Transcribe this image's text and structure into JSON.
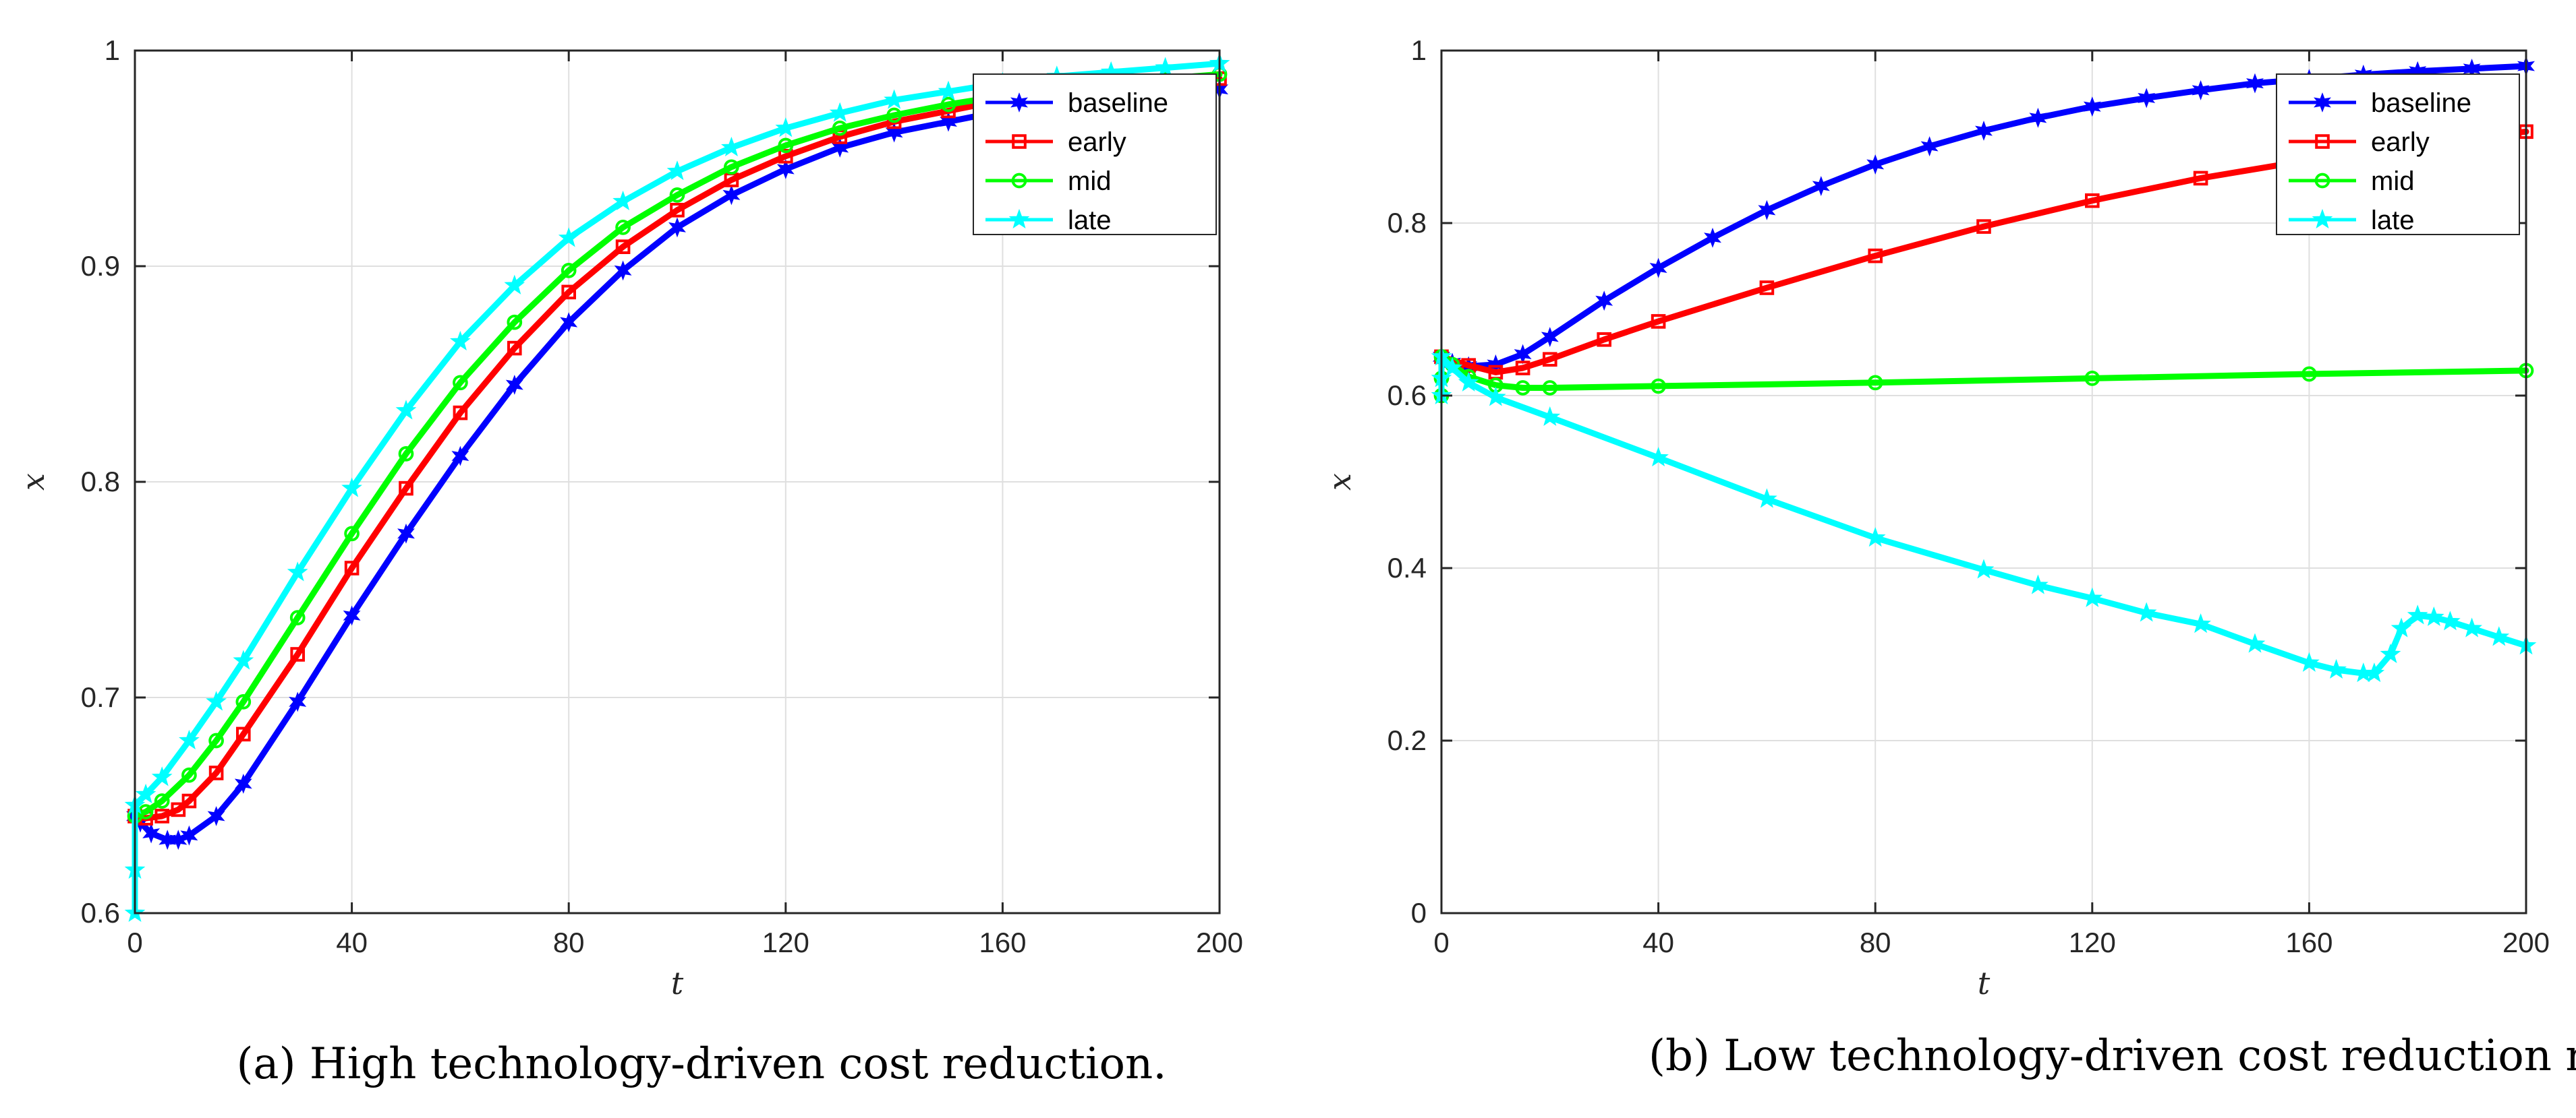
{
  "chart_data": [
    {
      "type": "line",
      "panel": "a",
      "caption": "(a) High technology-driven cost reduction.",
      "xlabel": "t",
      "ylabel": "x",
      "xlim": [
        0,
        200
      ],
      "ylim": [
        0.6,
        1
      ],
      "xticks": [
        0,
        40,
        80,
        120,
        160,
        200
      ],
      "xtick_labels": [
        "0",
        "40",
        "80",
        "120",
        "160",
        "200"
      ],
      "yticks": [
        0.6,
        0.7,
        0.8,
        0.9,
        1
      ],
      "ytick_labels": [
        "0.6",
        "0.7",
        "0.8",
        "0.9",
        "1"
      ],
      "grid": true,
      "legend_position": "top-right",
      "series": [
        {
          "name": "baseline",
          "color": "#0000ff",
          "marker": "star6",
          "x": [
            0,
            1,
            3,
            6,
            8,
            10,
            15,
            20,
            30,
            40,
            50,
            60,
            70,
            80,
            90,
            100,
            110,
            120,
            130,
            140,
            150,
            160,
            170,
            180,
            190,
            200
          ],
          "y": [
            0.645,
            0.642,
            0.637,
            0.634,
            0.634,
            0.636,
            0.645,
            0.66,
            0.698,
            0.738,
            0.776,
            0.812,
            0.845,
            0.874,
            0.898,
            0.918,
            0.933,
            0.945,
            0.955,
            0.962,
            0.967,
            0.972,
            0.975,
            0.978,
            0.98,
            0.982
          ]
        },
        {
          "name": "early",
          "color": "#ff0000",
          "marker": "square",
          "x": [
            0,
            2,
            5,
            8,
            10,
            15,
            20,
            30,
            40,
            50,
            60,
            70,
            80,
            90,
            100,
            110,
            120,
            130,
            140,
            150,
            160,
            170,
            180,
            190,
            200
          ],
          "y": [
            0.645,
            0.644,
            0.645,
            0.648,
            0.652,
            0.665,
            0.683,
            0.72,
            0.76,
            0.797,
            0.832,
            0.862,
            0.888,
            0.909,
            0.926,
            0.94,
            0.951,
            0.96,
            0.967,
            0.972,
            0.977,
            0.98,
            0.983,
            0.985,
            0.987
          ]
        },
        {
          "name": "mid",
          "color": "#00ff00",
          "marker": "circle",
          "x": [
            0,
            2,
            5,
            10,
            15,
            20,
            30,
            40,
            50,
            60,
            70,
            80,
            90,
            100,
            110,
            120,
            130,
            140,
            150,
            160,
            170,
            180,
            190,
            200
          ],
          "y": [
            0.645,
            0.647,
            0.652,
            0.664,
            0.68,
            0.698,
            0.737,
            0.776,
            0.813,
            0.846,
            0.874,
            0.898,
            0.918,
            0.933,
            0.946,
            0.956,
            0.964,
            0.97,
            0.975,
            0.979,
            0.982,
            0.985,
            0.987,
            0.989
          ]
        },
        {
          "name": "late",
          "color": "#00ffff",
          "marker": "star5",
          "x": [
            0,
            0,
            0,
            2,
            5,
            10,
            15,
            20,
            30,
            40,
            50,
            60,
            70,
            80,
            90,
            100,
            110,
            120,
            130,
            140,
            150,
            160,
            170,
            180,
            190,
            200
          ],
          "y": [
            0.6,
            0.62,
            0.65,
            0.655,
            0.663,
            0.68,
            0.698,
            0.717,
            0.758,
            0.797,
            0.833,
            0.865,
            0.891,
            0.913,
            0.93,
            0.944,
            0.955,
            0.964,
            0.971,
            0.977,
            0.981,
            0.985,
            0.988,
            0.99,
            0.992,
            0.994
          ]
        }
      ]
    },
    {
      "type": "line",
      "panel": "b",
      "caption": "(b) Low technology-driven cost reduction rate.",
      "xlabel": "t",
      "ylabel": "x",
      "xlim": [
        0,
        200
      ],
      "ylim": [
        0,
        1
      ],
      "xticks": [
        0,
        40,
        80,
        120,
        160,
        200
      ],
      "xtick_labels": [
        "0",
        "40",
        "80",
        "120",
        "160",
        "200"
      ],
      "yticks": [
        0,
        0.2,
        0.4,
        0.6,
        0.8,
        1
      ],
      "ytick_labels": [
        "0",
        "0.2",
        "0.4",
        "0.6",
        "0.8",
        "1"
      ],
      "grid": true,
      "legend_position": "top-right",
      "series": [
        {
          "name": "baseline",
          "color": "#0000ff",
          "marker": "star6",
          "x": [
            0,
            2,
            5,
            10,
            15,
            20,
            30,
            40,
            50,
            60,
            70,
            80,
            90,
            100,
            110,
            120,
            130,
            140,
            150,
            160,
            170,
            180,
            190,
            200
          ],
          "y": [
            0.645,
            0.638,
            0.634,
            0.636,
            0.648,
            0.668,
            0.71,
            0.748,
            0.783,
            0.815,
            0.843,
            0.868,
            0.889,
            0.907,
            0.922,
            0.935,
            0.945,
            0.954,
            0.962,
            0.967,
            0.972,
            0.976,
            0.979,
            0.982
          ]
        },
        {
          "name": "early",
          "color": "#ff0000",
          "marker": "square",
          "x": [
            0,
            5,
            10,
            15,
            20,
            30,
            40,
            60,
            80,
            100,
            120,
            140,
            160,
            180,
            200
          ],
          "y": [
            0.645,
            0.635,
            0.627,
            0.632,
            0.642,
            0.665,
            0.686,
            0.725,
            0.762,
            0.796,
            0.826,
            0.852,
            0.873,
            0.891,
            0.906
          ]
        },
        {
          "name": "mid",
          "color": "#00ff00",
          "marker": "circle",
          "x": [
            0,
            0,
            0,
            2,
            5,
            10,
            15,
            20,
            40,
            80,
            120,
            160,
            200
          ],
          "y": [
            0.6,
            0.62,
            0.645,
            0.636,
            0.622,
            0.612,
            0.609,
            0.609,
            0.611,
            0.615,
            0.62,
            0.625,
            0.629
          ]
        },
        {
          "name": "late",
          "color": "#00ffff",
          "marker": "star5",
          "x": [
            0,
            0,
            0,
            2,
            5,
            10,
            20,
            40,
            60,
            80,
            100,
            110,
            120,
            130,
            140,
            150,
            160,
            165,
            170,
            172,
            175,
            177,
            180,
            183,
            186,
            190,
            195,
            200
          ],
          "y": [
            0.6,
            0.62,
            0.645,
            0.632,
            0.615,
            0.598,
            0.575,
            0.528,
            0.48,
            0.435,
            0.398,
            0.38,
            0.365,
            0.348,
            0.335,
            0.312,
            0.29,
            0.282,
            0.278,
            0.278,
            0.3,
            0.33,
            0.345,
            0.343,
            0.338,
            0.33,
            0.32,
            0.31
          ]
        }
      ]
    }
  ]
}
